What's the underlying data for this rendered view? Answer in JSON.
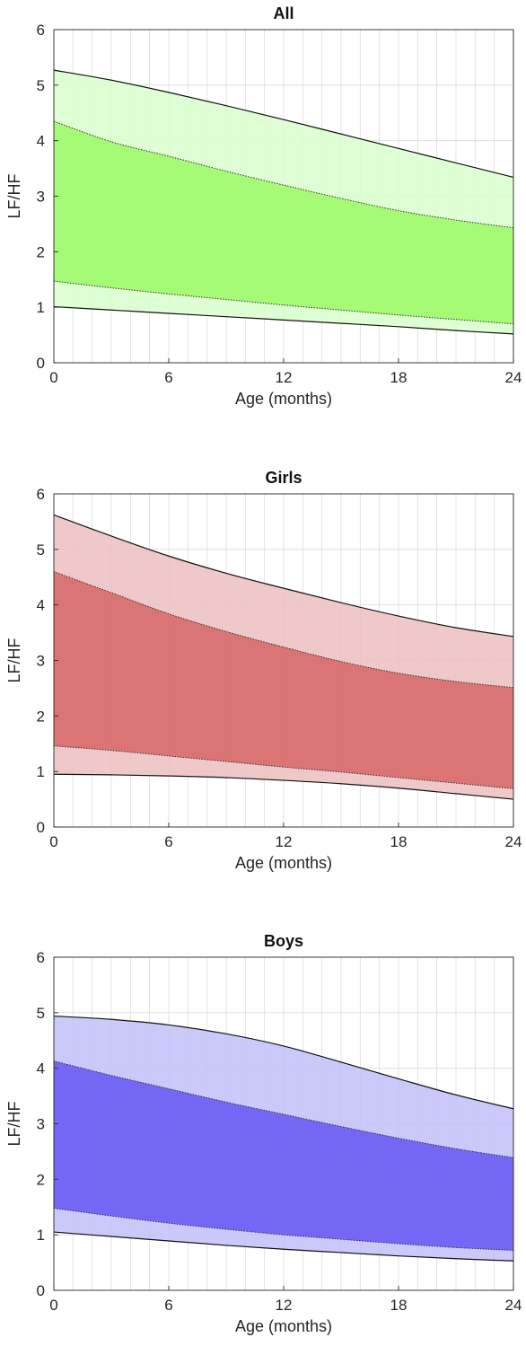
{
  "chart_data": [
    {
      "type": "area",
      "title": "All",
      "xlabel": "Age (months)",
      "ylabel": "LF/HF",
      "xlim": [
        0,
        24
      ],
      "ylim": [
        0,
        6
      ],
      "xticks": [
        0,
        6,
        12,
        18,
        24
      ],
      "yticks": [
        0,
        1,
        2,
        3,
        4,
        5,
        6
      ],
      "x_minor_grid_step": 1,
      "grid": true,
      "colors": {
        "outer": "#d8ffcc",
        "inner": "#9ef96c"
      },
      "x": [
        0,
        3,
        6,
        9,
        12,
        15,
        18,
        21,
        24
      ],
      "outer_upper": [
        5.27,
        5.09,
        4.87,
        4.63,
        4.38,
        4.12,
        3.86,
        3.6,
        3.34
      ],
      "inner_upper": [
        4.35,
        3.98,
        3.72,
        3.45,
        3.2,
        2.96,
        2.74,
        2.57,
        2.43
      ],
      "inner_lower": [
        1.47,
        1.35,
        1.24,
        1.14,
        1.04,
        0.95,
        0.86,
        0.78,
        0.7
      ],
      "outer_lower": [
        1.01,
        0.95,
        0.89,
        0.83,
        0.77,
        0.71,
        0.65,
        0.58,
        0.52
      ]
    },
    {
      "type": "area",
      "title": "Girls",
      "xlabel": "Age (months)",
      "ylabel": "LF/HF",
      "xlim": [
        0,
        24
      ],
      "ylim": [
        0,
        6
      ],
      "xticks": [
        0,
        6,
        12,
        18,
        24
      ],
      "yticks": [
        0,
        1,
        2,
        3,
        4,
        5,
        6
      ],
      "x_minor_grid_step": 1,
      "grid": true,
      "colors": {
        "outer": "#ecc0c0",
        "inner": "#d86a6a"
      },
      "x": [
        0,
        3,
        6,
        9,
        12,
        15,
        18,
        21,
        24
      ],
      "outer_upper": [
        5.62,
        5.24,
        4.88,
        4.57,
        4.3,
        4.04,
        3.8,
        3.59,
        3.43
      ],
      "inner_upper": [
        4.6,
        4.22,
        3.84,
        3.52,
        3.24,
        2.98,
        2.77,
        2.62,
        2.51
      ],
      "inner_lower": [
        1.46,
        1.38,
        1.28,
        1.18,
        1.08,
        0.99,
        0.89,
        0.79,
        0.69
      ],
      "outer_lower": [
        0.95,
        0.94,
        0.92,
        0.89,
        0.84,
        0.78,
        0.7,
        0.6,
        0.5
      ]
    },
    {
      "type": "area",
      "title": "Boys",
      "xlabel": "Age (months)",
      "ylabel": "LF/HF",
      "xlim": [
        0,
        24
      ],
      "ylim": [
        0,
        6
      ],
      "xticks": [
        0,
        6,
        12,
        18,
        24
      ],
      "yticks": [
        0,
        1,
        2,
        3,
        4,
        5,
        6
      ],
      "x_minor_grid_step": 1,
      "grid": true,
      "colors": {
        "outer": "#c2c0f8",
        "inner": "#6c5cf5"
      },
      "x": [
        0,
        3,
        6,
        9,
        12,
        15,
        18,
        21,
        24
      ],
      "outer_upper": [
        4.94,
        4.88,
        4.78,
        4.62,
        4.4,
        4.11,
        3.81,
        3.52,
        3.27
      ],
      "inner_upper": [
        4.13,
        3.87,
        3.63,
        3.39,
        3.17,
        2.95,
        2.74,
        2.55,
        2.39
      ],
      "inner_lower": [
        1.48,
        1.34,
        1.21,
        1.1,
        1.0,
        0.92,
        0.84,
        0.77,
        0.72
      ],
      "outer_lower": [
        1.05,
        0.97,
        0.89,
        0.81,
        0.74,
        0.68,
        0.62,
        0.57,
        0.53
      ]
    }
  ]
}
